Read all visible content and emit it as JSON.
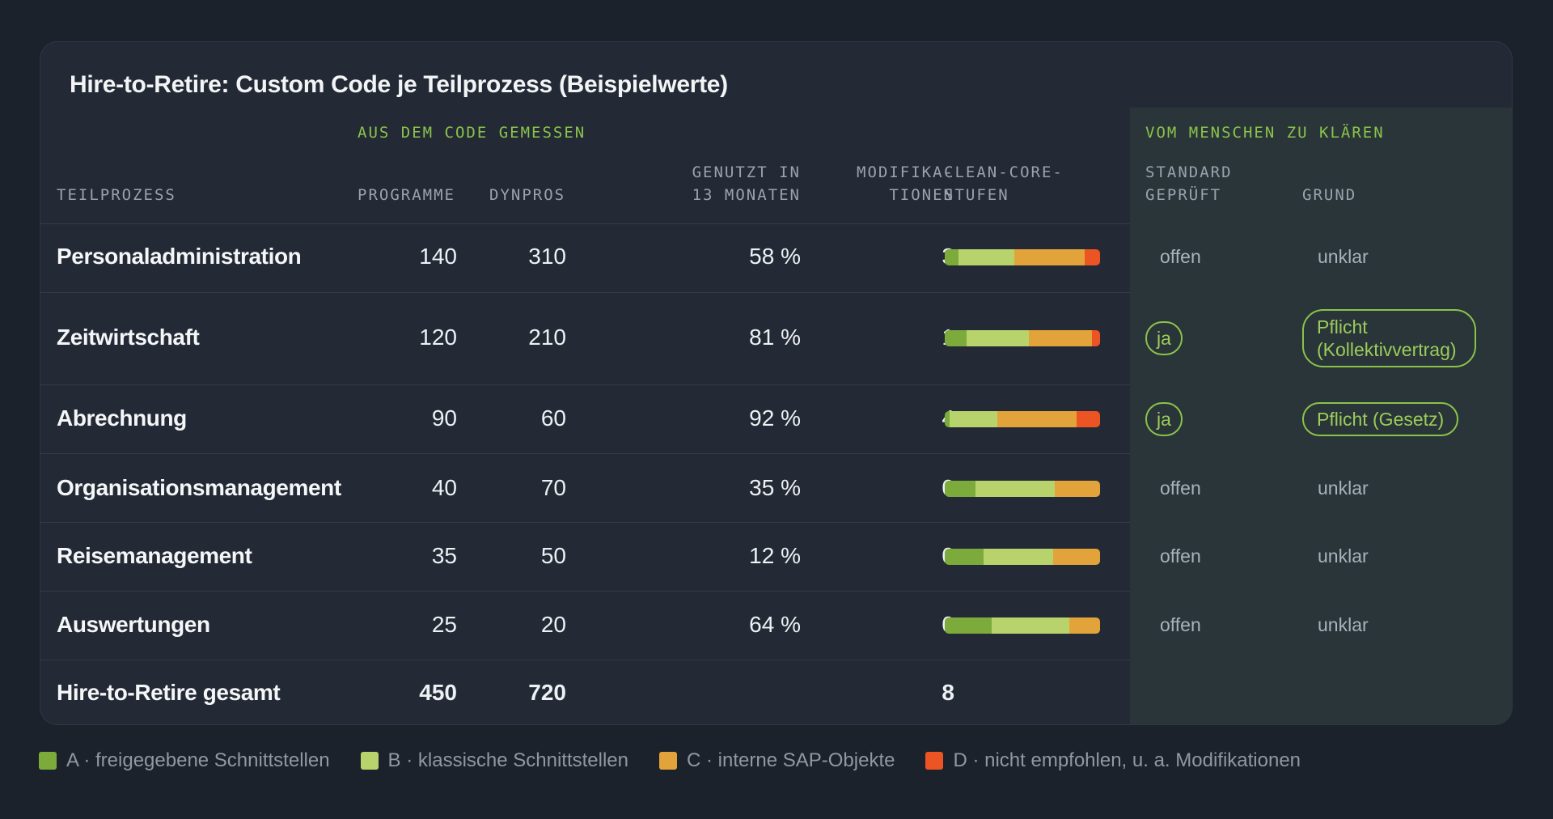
{
  "title": "Hire-to-Retire: Custom Code je Teilprozess (Beispielwerte)",
  "groups": {
    "measured": "AUS DEM CODE GEMESSEN",
    "human": "VOM MENSCHEN ZU KLÄREN"
  },
  "headers": {
    "teilprozess": "TEILPROZESS",
    "programme": "PROGRAMME",
    "dynpros": "DYNPROS",
    "genutzt_1": "GENUTZT IN",
    "genutzt_2": "13 MONATEN",
    "mod_1": "MODIFIKA-",
    "mod_2": "TIONEN",
    "stufen_1": "CLEAN-CORE-",
    "stufen_2": "STUFEN",
    "standard_1": "STANDARD",
    "standard_2": "GEPRÜFT",
    "grund": "GRUND"
  },
  "rows": [
    {
      "name": "Personaladministration",
      "programme": "140",
      "dynpros": "310",
      "genutzt": "58 %",
      "modifikationen": "3",
      "stufen": [
        0.09,
        0.36,
        0.45,
        0.1
      ],
      "standard": "offen",
      "standard_pill": false,
      "grund": "unklar",
      "grund_pill": false
    },
    {
      "name": "Zeitwirtschaft",
      "programme": "120",
      "dynpros": "210",
      "genutzt": "81 %",
      "modifikationen": "1",
      "stufen": [
        0.14,
        0.4,
        0.41,
        0.05
      ],
      "standard": "ja",
      "standard_pill": true,
      "grund": "Pflicht\n(Kollektivvertrag)",
      "grund_pill": true
    },
    {
      "name": "Abrechnung",
      "programme": "90",
      "dynpros": "60",
      "genutzt": "92 %",
      "modifikationen": "4",
      "stufen": [
        0.03,
        0.31,
        0.51,
        0.15
      ],
      "standard": "ja",
      "standard_pill": true,
      "grund": "Pflicht (Gesetz)",
      "grund_pill": true
    },
    {
      "name": "Organisationsmanagement",
      "programme": "40",
      "dynpros": "70",
      "genutzt": "35 %",
      "modifikationen": "0",
      "stufen": [
        0.2,
        0.51,
        0.29,
        0
      ],
      "standard": "offen",
      "standard_pill": false,
      "grund": "unklar",
      "grund_pill": false
    },
    {
      "name": "Reisemanagement",
      "programme": "35",
      "dynpros": "50",
      "genutzt": "12 %",
      "modifikationen": "0",
      "stufen": [
        0.25,
        0.45,
        0.3,
        0
      ],
      "standard": "offen",
      "standard_pill": false,
      "grund": "unklar",
      "grund_pill": false
    },
    {
      "name": "Auswertungen",
      "programme": "25",
      "dynpros": "20",
      "genutzt": "64 %",
      "modifikationen": "0",
      "stufen": [
        0.3,
        0.5,
        0.2,
        0
      ],
      "standard": "offen",
      "standard_pill": false,
      "grund": "unklar",
      "grund_pill": false
    }
  ],
  "total": {
    "name": "Hire-to-Retire gesamt",
    "programme": "450",
    "dynpros": "720",
    "modifikationen": "8"
  },
  "legend": [
    {
      "label": "A · freigegebene Schnittstellen",
      "color": "#7cab3c"
    },
    {
      "label": "B · klassische Schnittstellen",
      "color": "#b9d36c"
    },
    {
      "label": "C · interne SAP-Objekte",
      "color": "#e2a43a"
    },
    {
      "label": "D · nicht empfohlen, u. a. Modifikationen",
      "color": "#ec5424"
    }
  ]
}
